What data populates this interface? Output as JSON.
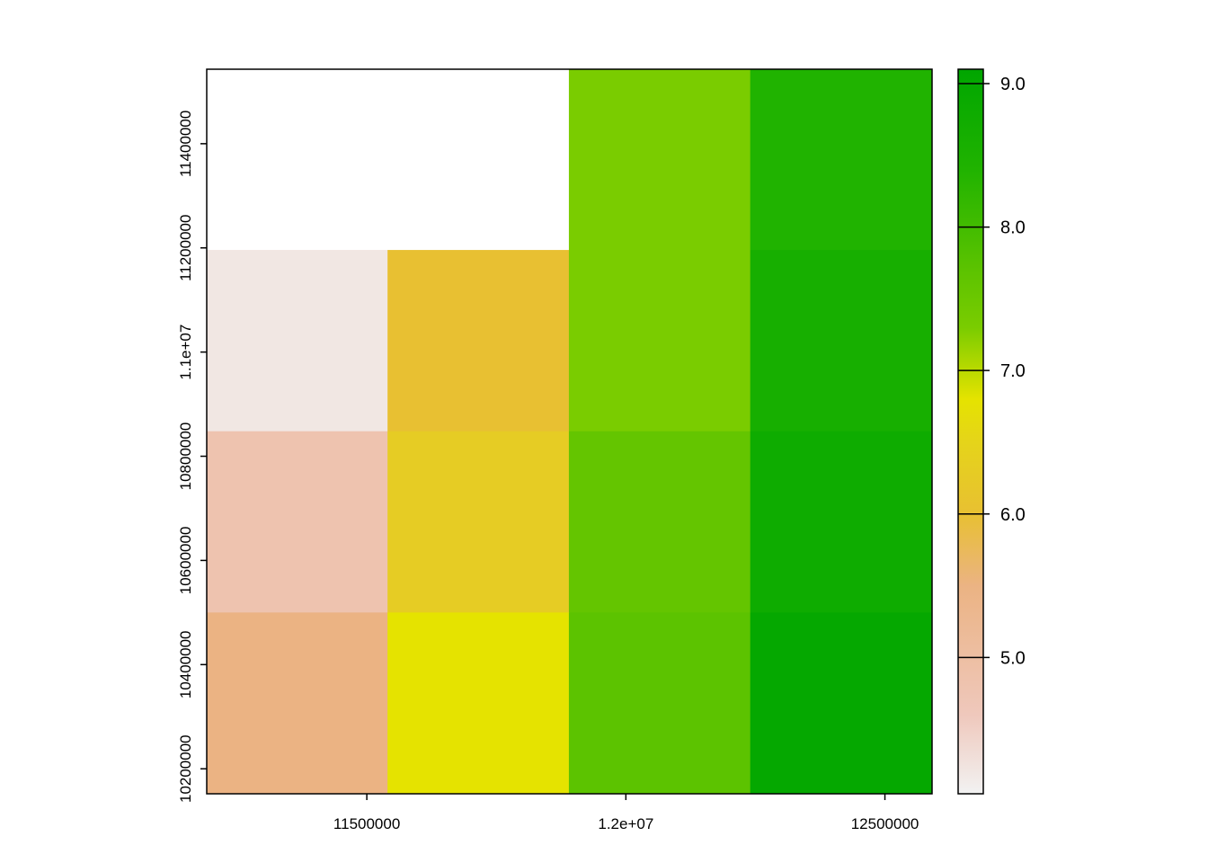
{
  "chart_data": {
    "type": "heatmap",
    "title": "",
    "xlabel": "",
    "ylabel": "",
    "xlim": [
      11191000,
      12591000
    ],
    "ylim": [
      10152000,
      11543000
    ],
    "x_cell_edges": [
      11191000,
      11540000,
      11890000,
      12240000,
      12591000
    ],
    "y_cell_edges": [
      10152000,
      10500000,
      10848000,
      11196000,
      11543000
    ],
    "grid_rows_top_to_bottom": [
      [
        null,
        null,
        7.3,
        8.4
      ],
      [
        4.2,
        6.0,
        7.3,
        8.6
      ],
      [
        4.8,
        6.3,
        7.6,
        8.8
      ],
      [
        5.5,
        6.8,
        7.7,
        9.0
      ]
    ],
    "x_ticks": [
      {
        "value": 11500000,
        "label": "11500000"
      },
      {
        "value": 12000000,
        "label": "1.2e+07"
      },
      {
        "value": 12500000,
        "label": "12500000"
      }
    ],
    "y_ticks": [
      {
        "value": 10200000,
        "label": "10200000"
      },
      {
        "value": 10400000,
        "label": "10400000"
      },
      {
        "value": 10600000,
        "label": "10600000"
      },
      {
        "value": 10800000,
        "label": "10800000"
      },
      {
        "value": 11000000,
        "label": "1.1e+07"
      },
      {
        "value": 11200000,
        "label": "11200000"
      },
      {
        "value": 11400000,
        "label": "11400000"
      }
    ],
    "legend": {
      "placement": "right",
      "min": 4.05,
      "max": 9.1,
      "ticks": [
        {
          "value": 5.0,
          "label": "5.0"
        },
        {
          "value": 6.0,
          "label": "6.0"
        },
        {
          "value": 7.0,
          "label": "7.0"
        },
        {
          "value": 8.0,
          "label": "8.0"
        },
        {
          "value": 9.0,
          "label": "9.0"
        }
      ]
    },
    "color_scale": [
      {
        "value": 4.05,
        "color": "#f2f2f2"
      },
      {
        "value": 4.6,
        "color": "#efc8bc"
      },
      {
        "value": 5.5,
        "color": "#ebb383"
      },
      {
        "value": 6.0,
        "color": "#e8c032"
      },
      {
        "value": 6.5,
        "color": "#e5d41a"
      },
      {
        "value": 6.8,
        "color": "#e5e300"
      },
      {
        "value": 7.3,
        "color": "#7acc00"
      },
      {
        "value": 7.7,
        "color": "#5cc300"
      },
      {
        "value": 8.4,
        "color": "#20b300"
      },
      {
        "value": 9.1,
        "color": "#00a600"
      }
    ],
    "grid": false
  }
}
